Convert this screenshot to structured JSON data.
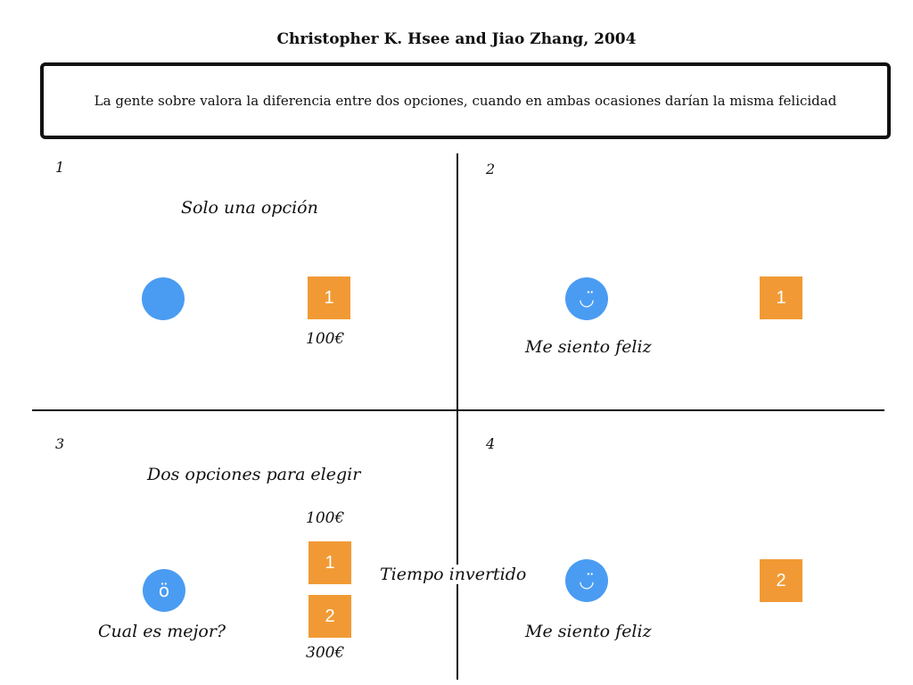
{
  "header": {
    "title": "Christopher K. Hsee and Jiao Zhang, 2004",
    "statement": "La gente sobre valora la diferencia entre dos opciones, cuando en ambas ocasiones darían la misma felicidad"
  },
  "quadrants": [
    {
      "number": "1",
      "heading": "Solo una opción",
      "option_label": "1",
      "amount": "100€"
    },
    {
      "number": "2",
      "face_icon": "smile-face",
      "face_glyph": "◡̈",
      "option_label": "1",
      "caption": "Me siento feliz"
    },
    {
      "number": "3",
      "heading": "Dos opciones para elegir",
      "face_icon": "confused-face",
      "face_glyph": "ö",
      "caption": "Cual es mejor?",
      "options": [
        {
          "label": "1",
          "amount": "100€"
        },
        {
          "label": "2",
          "amount": "300€"
        }
      ]
    },
    {
      "number": "4",
      "face_icon": "smile-face",
      "face_glyph": "◡̈",
      "option_label": "2",
      "caption": "Me siento feliz"
    }
  ],
  "center_label": "Tiempo invertido",
  "colors": {
    "person": "#4a9cf2",
    "option": "#f19a35",
    "ink": "#111111"
  }
}
